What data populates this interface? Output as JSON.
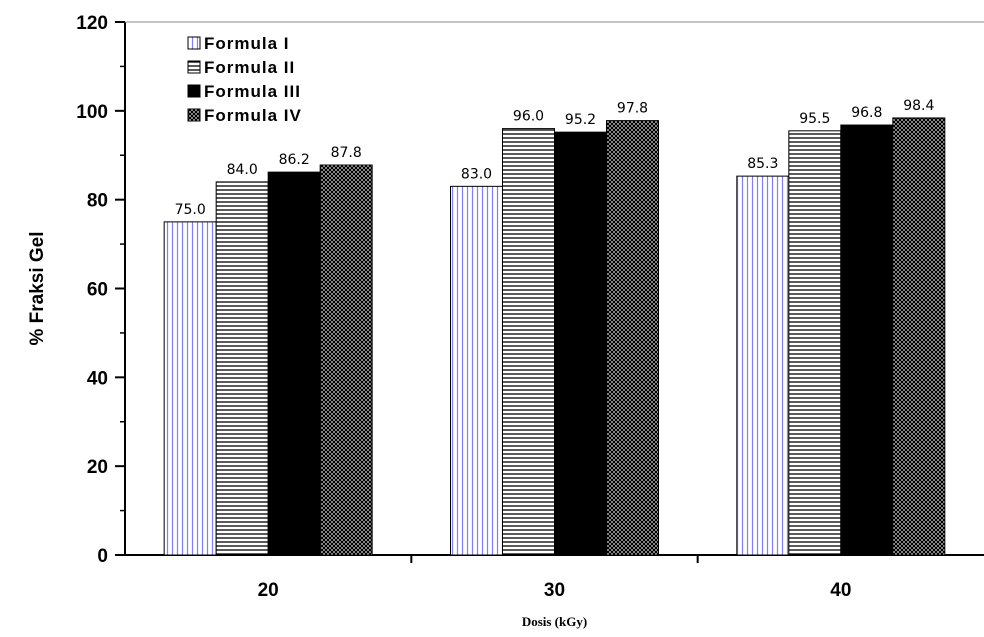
{
  "chart_data": {
    "type": "bar",
    "categories": [
      "20",
      "30",
      "40"
    ],
    "series": [
      {
        "name": "Formula I",
        "values": [
          75.0,
          83.0,
          85.3
        ],
        "labels": [
          "75.0",
          "83.0",
          "85.3"
        ]
      },
      {
        "name": "Formula II",
        "values": [
          84.0,
          96.0,
          95.5
        ],
        "labels": [
          "84.0",
          "96.0",
          "95.5"
        ]
      },
      {
        "name": "Formula III",
        "values": [
          86.2,
          95.2,
          96.8
        ],
        "labels": [
          "86.2",
          "95.2",
          "96.8"
        ]
      },
      {
        "name": "Formula IV",
        "values": [
          87.8,
          97.8,
          98.4
        ],
        "labels": [
          "87.8",
          "97.8",
          "98.4"
        ]
      }
    ],
    "title": "",
    "xlabel": "Dosis (kGy)",
    "ylabel": "% Fraksi Gel",
    "ylim": [
      0,
      120
    ],
    "yticks": [
      "0",
      "20",
      "40",
      "60",
      "80",
      "100",
      "120"
    ],
    "grid": false,
    "legend_position": "top-left",
    "series_fills": [
      "vertical-lines-blue",
      "horizontal-lines",
      "solid-black",
      "crosshatch-dense"
    ],
    "colors": {
      "formula_i_lines": "#8080ff",
      "bar_outline": "#000000",
      "background": "#ffffff"
    }
  }
}
